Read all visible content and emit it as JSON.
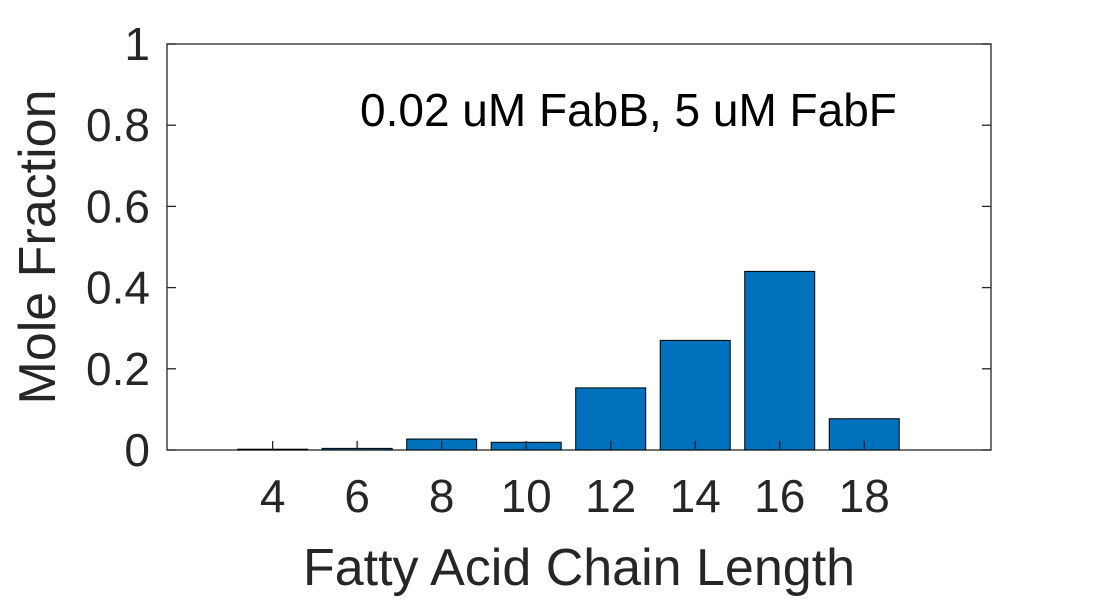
{
  "chart_data": {
    "type": "bar",
    "categories": [
      "4",
      "6",
      "8",
      "10",
      "12",
      "14",
      "16",
      "18"
    ],
    "x": [
      4,
      6,
      8,
      10,
      12,
      14,
      16,
      18
    ],
    "values": [
      0.002,
      0.004,
      0.027,
      0.019,
      0.153,
      0.27,
      0.44,
      0.077
    ],
    "xlabel": "Fatty Acid Chain Length",
    "ylabel": "Mole Fraction",
    "xlim": [
      1.5,
      21
    ],
    "ylim": [
      0,
      1
    ],
    "yticks": [
      0,
      0.2,
      0.4,
      0.6,
      0.8,
      1
    ],
    "ytick_labels": [
      "0",
      "0.2",
      "0.4",
      "0.6",
      "0.8",
      "1"
    ],
    "annotation": "0.02 uM FabB, 5 uM FabF",
    "bar_color": "#0072BD",
    "grid": false,
    "legend": "none"
  }
}
